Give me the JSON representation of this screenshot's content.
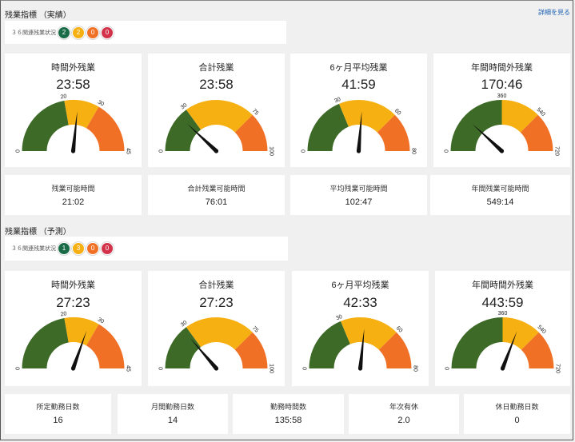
{
  "links": {
    "details": "詳細を見る"
  },
  "colors": {
    "green": "#3d6b27",
    "yellow": "#f6b012",
    "orange": "#f07126",
    "needle": "#111111",
    "badge_teal": "#1a6b47",
    "badge_yellow": "#f6b012",
    "badge_orange": "#f07126",
    "badge_red": "#d2334b"
  },
  "actual": {
    "title": "残業指標 （実績）",
    "status_label": "３６関連残業状況",
    "badges": [
      "2",
      "2",
      "0",
      "0"
    ],
    "gauges": [
      {
        "title": "時間外残業",
        "value": "23:58",
        "ticks": [
          "0",
          "20",
          "30",
          "45"
        ],
        "max": 45,
        "g": 20,
        "y": 30,
        "needle": 23.97
      },
      {
        "title": "合計残業",
        "value": "23:58",
        "ticks": [
          "0",
          "30",
          "75",
          "100"
        ],
        "max": 100,
        "g": 30,
        "y": 75,
        "needle": 23.97
      },
      {
        "title": "6ヶ月平均残業",
        "value": "41:59",
        "ticks": [
          "0",
          "30",
          "60",
          "80"
        ],
        "max": 80,
        "g": 30,
        "y": 60,
        "needle": 41.98
      },
      {
        "title": "年間時間外残業",
        "value": "170:46",
        "ticks": [
          "0",
          "360",
          "540",
          "720"
        ],
        "max": 720,
        "g": 360,
        "y": 540,
        "needle": 170.77
      }
    ],
    "stats": [
      {
        "label": "残業可能時間",
        "value": "21:02"
      },
      {
        "label": "合計残業可能時間",
        "value": "76:01"
      },
      {
        "label": "平均残業可能時間",
        "value": "102:47"
      },
      {
        "label": "年間残業可能時間",
        "value": "549:14"
      }
    ]
  },
  "forecast": {
    "title": "残業指標 （予測）",
    "status_label": "３６関連残業状況",
    "badges": [
      "1",
      "3",
      "0",
      "0"
    ],
    "gauges": [
      {
        "title": "時間外残業",
        "value": "27:23",
        "ticks": [
          "0",
          "20",
          "30",
          "45"
        ],
        "max": 45,
        "g": 20,
        "y": 30,
        "needle": 27.38
      },
      {
        "title": "合計残業",
        "value": "27:23",
        "ticks": [
          "0",
          "30",
          "75",
          "100"
        ],
        "max": 100,
        "g": 30,
        "y": 75,
        "needle": 27.38
      },
      {
        "title": "6ヶ月平均残業",
        "value": "42:33",
        "ticks": [
          "0",
          "30",
          "60",
          "80"
        ],
        "max": 80,
        "g": 30,
        "y": 60,
        "needle": 42.55
      },
      {
        "title": "年間時間外残業",
        "value": "443:59",
        "ticks": [
          "0",
          "360",
          "540",
          "720"
        ],
        "max": 720,
        "g": 360,
        "y": 540,
        "needle": 443.98
      }
    ],
    "stats": [
      {
        "label": "所定勤務日数",
        "value": "16"
      },
      {
        "label": "月間勤務日数",
        "value": "14"
      },
      {
        "label": "勤務時間数",
        "value": "135:58"
      },
      {
        "label": "年次有休",
        "value": "2.0"
      },
      {
        "label": "休日勤務日数",
        "value": "0"
      }
    ]
  }
}
